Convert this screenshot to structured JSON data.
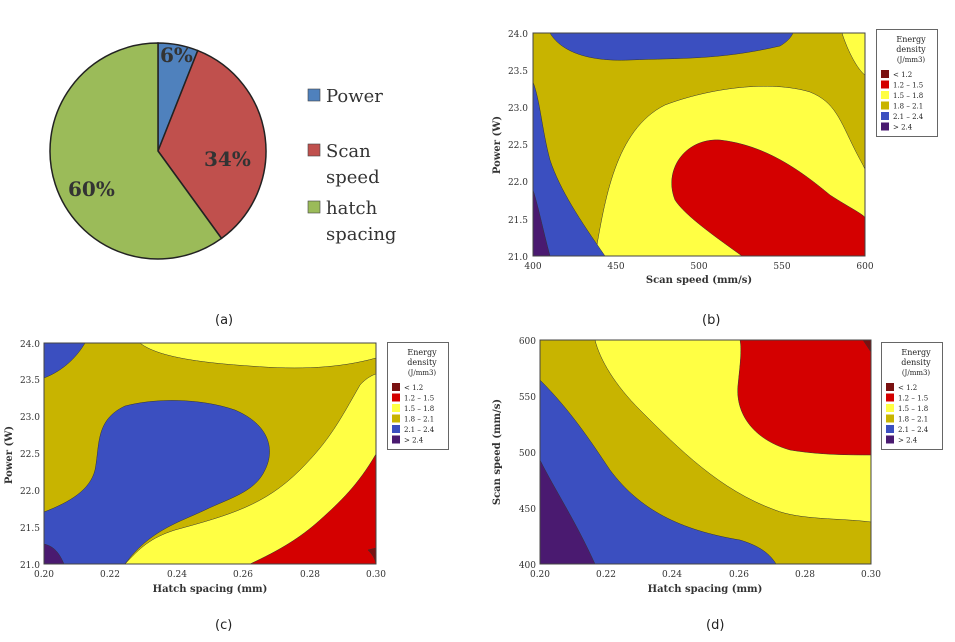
{
  "captions": {
    "a": "(a)",
    "b": "(b)",
    "c": "(c)",
    "d": "(d)"
  },
  "legend": {
    "title_lines": [
      "Energy",
      "density",
      "(J/mm3)"
    ],
    "entries": [
      {
        "label": "<  1.2",
        "color": "#7a1111"
      },
      {
        "label": "1.2  –  1.5",
        "color": "#d40000"
      },
      {
        "label": "1.5  –  1.8",
        "color": "#ffff44"
      },
      {
        "label": "1.8  –  2.1",
        "color": "#c8b400"
      },
      {
        "label": "2.1  –  2.4",
        "color": "#3b4fc0"
      },
      {
        "label": ">  2.4",
        "color": "#4a1a70"
      }
    ]
  },
  "chart_data": [
    {
      "type": "pie",
      "labels": [
        "Power",
        "Scan speed",
        "hatch spacing"
      ],
      "values": [
        6,
        34,
        60
      ],
      "slice_labels": [
        "6%",
        "34%",
        "60%"
      ],
      "colors": [
        "#4f81bd",
        "#c0504d",
        "#9bbb59"
      ],
      "legend_lines": [
        [
          "Power"
        ],
        [
          "Scan",
          "speed"
        ],
        [
          "hatch",
          "spacing"
        ]
      ]
    },
    {
      "type": "heatmap",
      "xlabel": "Scan speed (mm/s)",
      "ylabel": "Power (W)",
      "xlim": [
        400,
        600
      ],
      "ylim": [
        21.0,
        24.0
      ],
      "xticks": [
        "400",
        "450",
        "500",
        "550",
        "600"
      ],
      "yticks": [
        "21.0",
        "21.5",
        "22.0",
        "22.5",
        "23.0",
        "23.5",
        "24.0"
      ]
    },
    {
      "type": "heatmap",
      "xlabel": "Hatch spacing (mm)",
      "ylabel": "Power (W)",
      "xlim": [
        0.2,
        0.3
      ],
      "ylim": [
        21.0,
        24.0
      ],
      "xticks": [
        "0.20",
        "0.22",
        "0.24",
        "0.26",
        "0.28",
        "0.30"
      ],
      "yticks": [
        "21.0",
        "21.5",
        "22.0",
        "22.5",
        "23.0",
        "23.5",
        "24.0"
      ]
    },
    {
      "type": "heatmap",
      "xlabel": "Hatch spacing (mm)",
      "ylabel": "Scan speed (mm/s)",
      "xlim": [
        0.2,
        0.3
      ],
      "ylim": [
        400,
        600
      ],
      "xticks": [
        "0.20",
        "0.22",
        "0.24",
        "0.26",
        "0.28",
        "0.30"
      ],
      "yticks": [
        "400",
        "450",
        "500",
        "550",
        "600"
      ]
    }
  ]
}
